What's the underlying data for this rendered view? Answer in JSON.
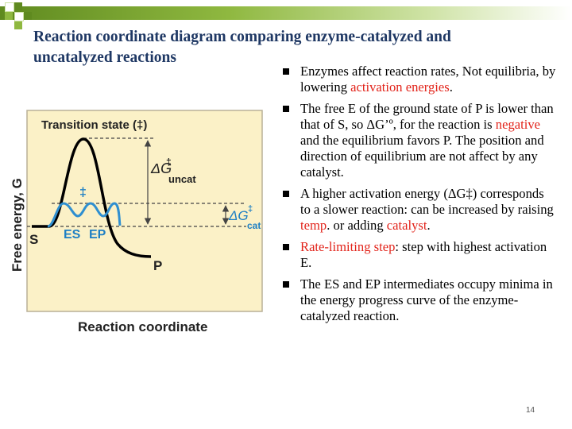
{
  "title": "Reaction coordinate diagram comparing enzyme-catalyzed and uncatalyzed reactions",
  "diagram": {
    "y_axis_label": "Free energy, G",
    "x_axis_label": "Reaction coordinate",
    "transition_state_label": "Transition state (‡)",
    "dagger": "‡",
    "S_label": "S",
    "ES_label": "ES",
    "EP_label": "EP",
    "P_label": "P",
    "dg_uncat_label": "ΔG",
    "dg_uncat_sup": "‡",
    "dg_uncat_sub": "uncat",
    "dg_cat_label": "ΔG",
    "dg_cat_sup": "‡",
    "dg_cat_sub": "cat",
    "colors": {
      "panel": "#fbf1c7",
      "panel_border": "#b9b097",
      "curve": "#000000",
      "catalyzed_curve": "#2f8fd0",
      "label_blue": "#1d7fc4",
      "dash": "#444444"
    }
  },
  "bullets": [
    {
      "parts": [
        {
          "text": "Enzymes affect reaction rates, Not equilibria, by lowering "
        },
        {
          "text": "activation energies",
          "red": true
        },
        {
          "text": "."
        }
      ]
    },
    {
      "parts": [
        {
          "text": "The free E of the ground state of P is lower than that of S, so ΔG’º, for the reaction is "
        },
        {
          "text": "negative",
          "red": true
        },
        {
          "text": " and the equilibrium favors P. The position and direction of equilibrium are not affect by any catalyst."
        }
      ]
    },
    {
      "parts": [
        {
          "text": "A higher activation energy (ΔG‡) corresponds to a slower reaction: can be increased by raising "
        },
        {
          "text": "temp",
          "red": true
        },
        {
          "text": ". or adding "
        },
        {
          "text": "catalyst",
          "red": true
        },
        {
          "text": "."
        }
      ]
    },
    {
      "parts": [
        {
          "text": "Rate-limiting step",
          "red": true
        },
        {
          "text": ": step with highest activation E."
        }
      ]
    },
    {
      "parts": [
        {
          "text": "The ES and EP intermediates occupy minima in the energy progress curve of the enzyme-catalyzed reaction."
        }
      ]
    }
  ],
  "page_number": "14",
  "colors": {
    "title": "#1f3864",
    "accent_red": "#e2231a",
    "bar_dark": "#5f8a1f",
    "bar_light": "#cfe3a6"
  }
}
